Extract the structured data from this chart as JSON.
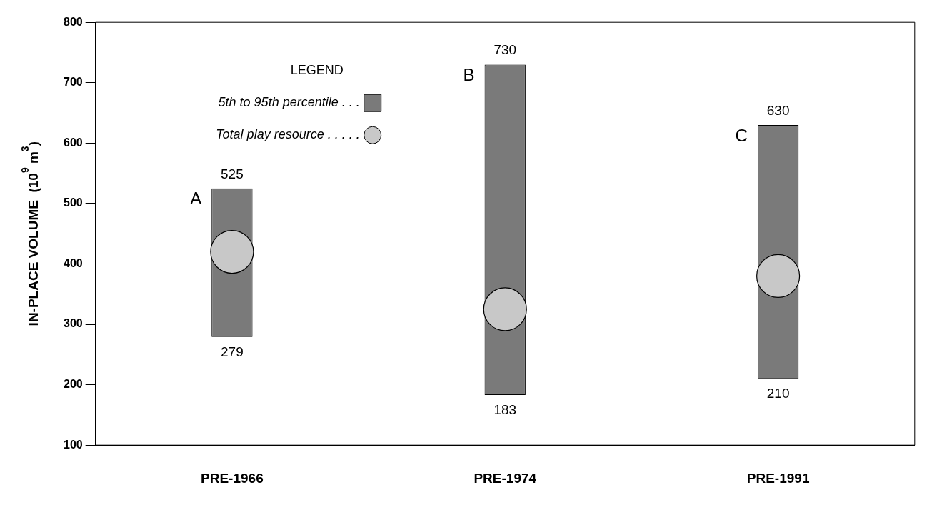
{
  "chart_data": {
    "type": "bar",
    "ylabel": "IN-PLACE VOLUME  (10$^{9}$ m$^{3}$)",
    "legend_title": "LEGEND",
    "legend": "top left",
    "categories": [
      "PRE-1966",
      "PRE-1974",
      "PRE-1991"
    ],
    "series": [
      {
        "name": "5th to 95th percentile . . .",
        "color": "#7a7a7a",
        "base": [
          279,
          183,
          210
        ],
        "values": [
          246,
          547,
          420
        ]
      },
      {
        "name": "Total play resource . . . . .",
        "type": "scatter",
        "color": "#c8c8c8",
        "values": [
          420,
          325,
          380
        ],
        "marker": "circle"
      }
    ],
    "ylim": [
      100,
      800
    ],
    "yticks": [
      100,
      200,
      300,
      400,
      500,
      600,
      700,
      800
    ],
    "grid": false,
    "annotations": [
      {
        "text": "525",
        "x": "PRE-1966",
        "y": 525
      },
      {
        "text": "279",
        "x": "PRE-1966",
        "y": 279
      },
      "A",
      {
        "text": "730",
        "x": "PRE-1974",
        "y": 730
      },
      {
        "text": "183",
        "x": "PRE-1974",
        "y": 183
      },
      "B",
      {
        "text": "630",
        "x": "PRE-1991",
        "y": 630
      },
      {
        "text": "210",
        "x": "PRE-1991",
        "y": 210
      },
      "C"
    ]
  }
}
